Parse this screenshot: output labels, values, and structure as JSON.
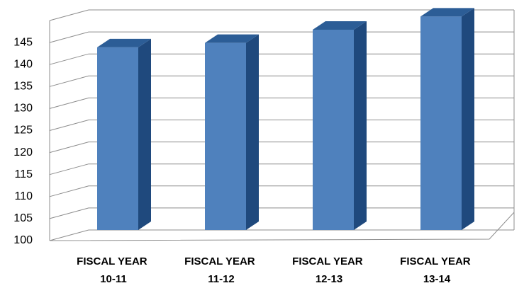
{
  "chart_data": {
    "type": "bar3d",
    "categories": [
      "FISCAL YEAR 10-11",
      "FISCAL YEAR 11-12",
      "FISCAL YEAR 12-13",
      "FISCAL YEAR 13-14"
    ],
    "values": [
      141.5,
      142.5,
      145.5,
      148.5
    ],
    "color": "#4f81bd",
    "ylim": [
      100,
      150
    ],
    "yticks": [
      100,
      105,
      110,
      115,
      120,
      125,
      130,
      135,
      140,
      145
    ],
    "grid": true
  }
}
